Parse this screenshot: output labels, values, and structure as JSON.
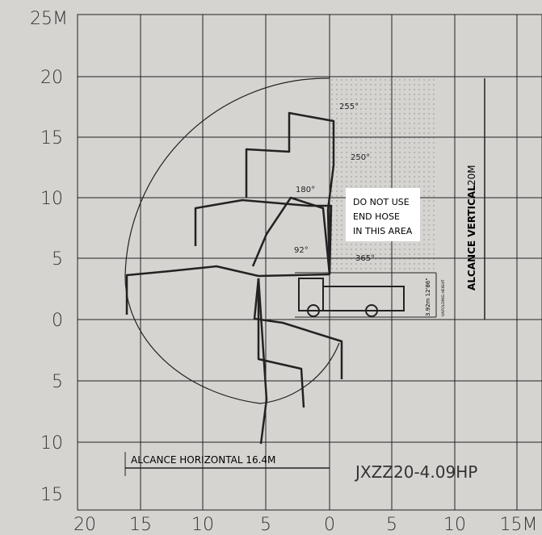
{
  "y_axis": {
    "labels": [
      "25M",
      "20",
      "15",
      "10",
      "5",
      "0",
      "5",
      "10",
      "15"
    ]
  },
  "x_axis": {
    "labels": [
      "20",
      "15",
      "10",
      "5",
      "0",
      "5",
      "10",
      "15M"
    ]
  },
  "angles": [
    "255°",
    "250°",
    "180°",
    "92°",
    "365°"
  ],
  "warning": [
    "DO NOT USE",
    "END HOSE",
    "IN THIS AREA"
  ],
  "vertical_reach": {
    "label": "ALCANCE VERTICAL",
    "value": "20M"
  },
  "horizontal_reach": "ALCANCE HORIZONTAL 16.4M",
  "model": "JXZZ20-4.09HP",
  "truck_height": "3.92m 12'86\"",
  "truck_height_note": "UNFOLDING HEIGHT"
}
